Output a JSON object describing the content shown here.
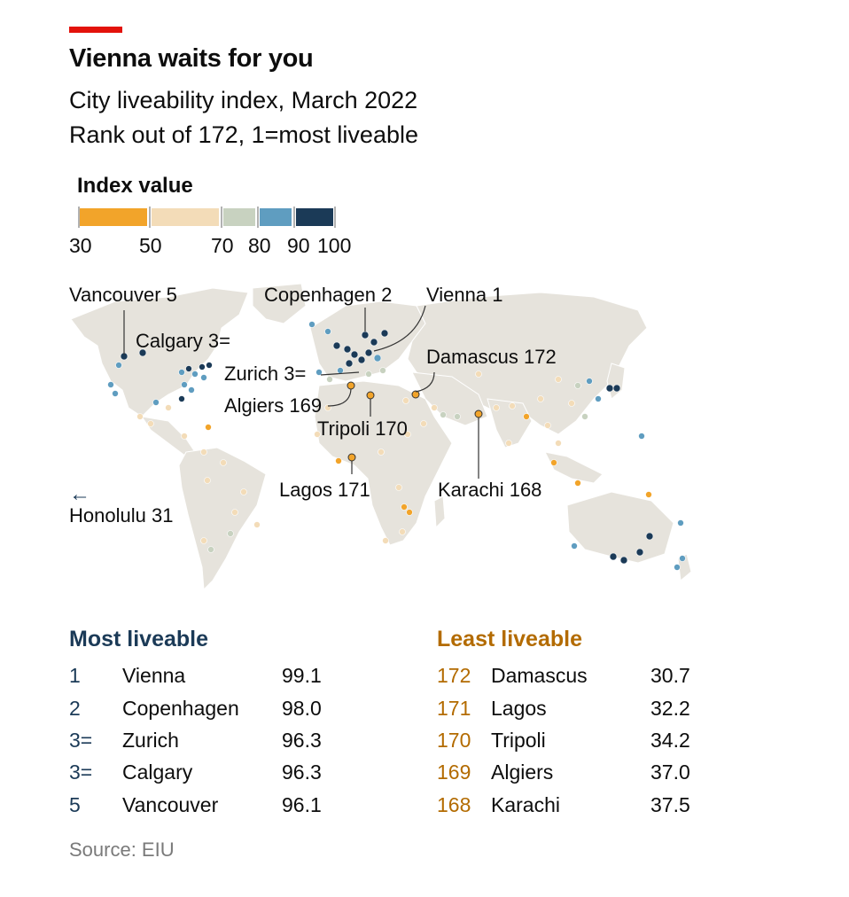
{
  "header": {
    "title": "Vienna waits for you",
    "subtitle": "City liveability index, March 2022",
    "subtitle2": "Rank out of 172, 1=most liveable"
  },
  "legend": {
    "title": "Index value",
    "ticks": [
      "30",
      "50",
      "70",
      "80",
      "90",
      "100"
    ],
    "colors": [
      "#f2a42a",
      "#f3dcb8",
      "#c8d2c0",
      "#5f9dc0",
      "#1b3a57"
    ]
  },
  "map_labels": {
    "vancouver": "Vancouver 5",
    "calgary": "Calgary 3=",
    "copenhagen": "Copenhagen 2",
    "vienna": "Vienna 1",
    "zurich": "Zurich 3=",
    "damascus": "Damascus 172",
    "algiers": "Algiers 169",
    "tripoli": "Tripoli 170",
    "lagos": "Lagos 171",
    "karachi": "Karachi 168",
    "honolulu": "Honolulu 31",
    "arrow": "←"
  },
  "most_liveable": {
    "heading": "Most liveable",
    "color": "#1b3a57",
    "rows": [
      {
        "rank": "1",
        "city": "Vienna",
        "value": "99.1"
      },
      {
        "rank": "2",
        "city": "Copenhagen",
        "value": "98.0"
      },
      {
        "rank": "3=",
        "city": "Zurich",
        "value": "96.3"
      },
      {
        "rank": "3=",
        "city": "Calgary",
        "value": "96.3"
      },
      {
        "rank": "5",
        "city": "Vancouver",
        "value": "96.1"
      }
    ]
  },
  "least_liveable": {
    "heading": "Least liveable",
    "color": "#b36b00",
    "rows": [
      {
        "rank": "172",
        "city": "Damascus",
        "value": "30.7"
      },
      {
        "rank": "171",
        "city": "Lagos",
        "value": "32.2"
      },
      {
        "rank": "170",
        "city": "Tripoli",
        "value": "34.2"
      },
      {
        "rank": "169",
        "city": "Algiers",
        "value": "37.0"
      },
      {
        "rank": "168",
        "city": "Karachi",
        "value": "37.5"
      }
    ]
  },
  "source": "Source: EIU"
}
